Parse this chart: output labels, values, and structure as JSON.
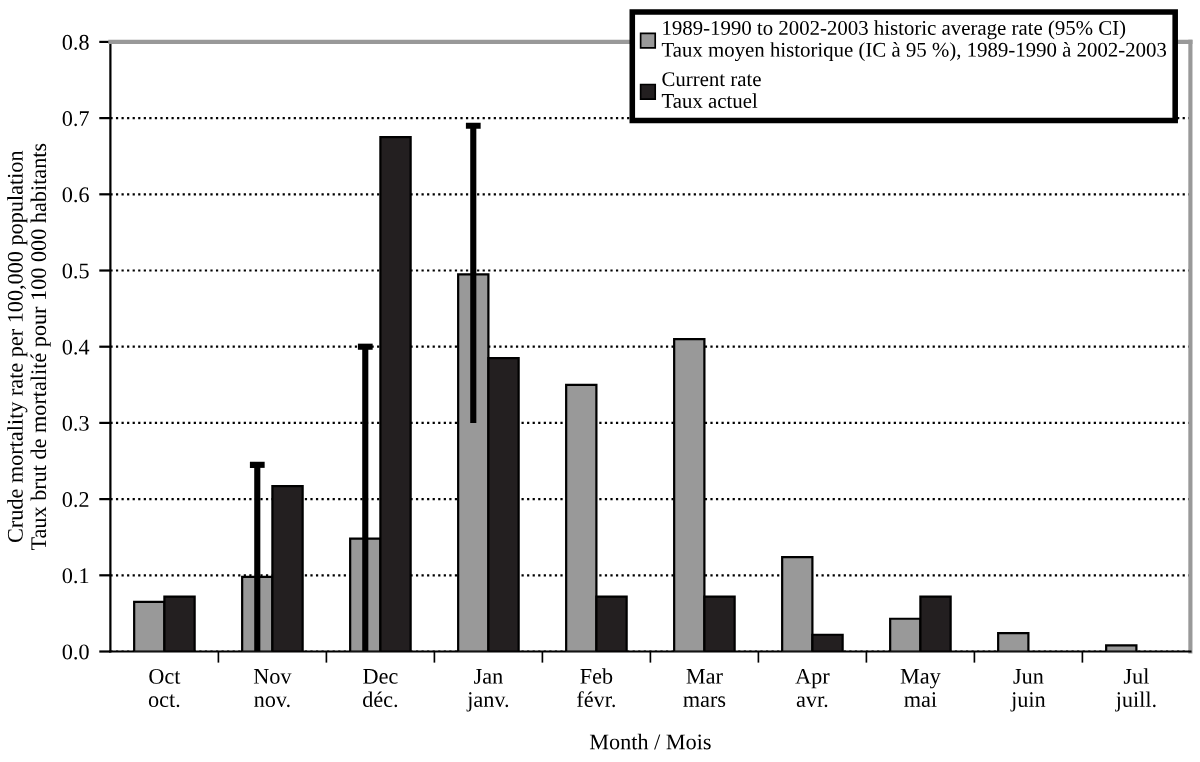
{
  "chart_data": {
    "type": "bar",
    "xlabel": "Month / Mois",
    "ylabel": "Crude mortality rate per 100,000 population\nTaux brut de mortalité pour 100 000 habitants",
    "categories": [
      "Oct\noct.",
      "Nov\nnov.",
      "Dec\ndéc.",
      "Jan\njanv.",
      "Feb\nfévr.",
      "Mar\nmars",
      "Apr\navr.",
      "May\nmai",
      "Jun\njuin",
      "Jul\njuill."
    ],
    "series": [
      {
        "name": "1989-1990 to 2002-2003 historic average rate (95% CI)\nTaux moyen historique (IC à 95 %), 1989-1990 à 2002-2003",
        "color": "#999999",
        "values": [
          0.065,
          0.098,
          0.148,
          0.495,
          0.35,
          0.41,
          0.124,
          0.043,
          0.024,
          0.008
        ],
        "errors": [
          null,
          [
            0,
            0.245
          ],
          [
            0,
            0.4
          ],
          [
            0.3,
            0.69
          ],
          null,
          null,
          null,
          null,
          null,
          null
        ]
      },
      {
        "name": "Current rate\nTaux actuel",
        "color": "#231f20",
        "values": [
          0.072,
          0.217,
          0.675,
          0.385,
          0.072,
          0.072,
          0.022,
          0.072,
          null,
          null
        ]
      }
    ],
    "ylim": [
      0,
      0.8
    ],
    "yticks": [
      {
        "value": 0,
        "label": "0.0"
      },
      0.1,
      0.2,
      0.3,
      0.4,
      0.5,
      0.6,
      0.7,
      0.8
    ],
    "grid": "y",
    "legend": "top right"
  }
}
